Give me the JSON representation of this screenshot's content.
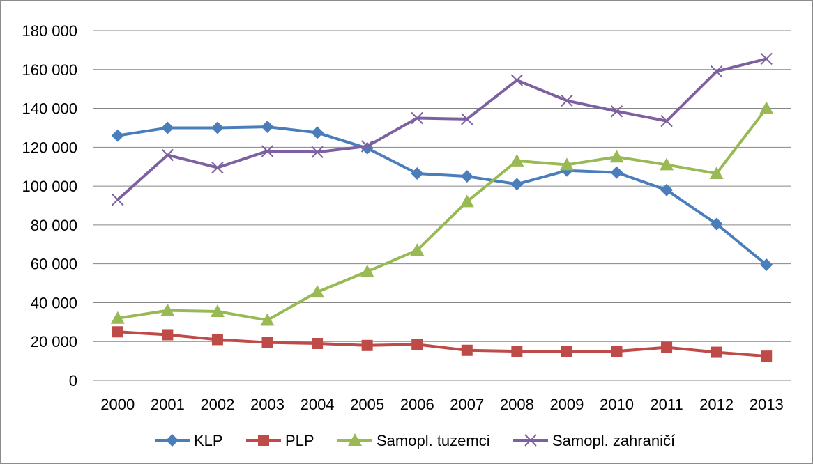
{
  "chart_data": {
    "type": "line",
    "title": "",
    "xlabel": "",
    "ylabel": "",
    "categories": [
      "2000",
      "2001",
      "2002",
      "2003",
      "2004",
      "2005",
      "2006",
      "2007",
      "2008",
      "2009",
      "2010",
      "2011",
      "2012",
      "2013"
    ],
    "ylim": [
      0,
      180000
    ],
    "yticks": [
      0,
      20000,
      40000,
      60000,
      80000,
      100000,
      120000,
      140000,
      160000,
      180000
    ],
    "ytick_labels": [
      "0",
      "20 000",
      "40 000",
      "60 000",
      "80 000",
      "100 000",
      "120 000",
      "140 000",
      "160 000",
      "180 000"
    ],
    "grid": "horizontal",
    "legend_position": "bottom",
    "series": [
      {
        "name": "KLP",
        "color": "#4a7ebb",
        "marker": "diamond",
        "values": [
          126000,
          130000,
          130000,
          130500,
          127500,
          119500,
          106500,
          105000,
          101000,
          108000,
          107000,
          98000,
          80500,
          59500
        ]
      },
      {
        "name": "PLP",
        "color": "#be4b48",
        "marker": "square",
        "values": [
          25000,
          23500,
          21000,
          19500,
          19000,
          18000,
          18500,
          15500,
          15000,
          15000,
          15000,
          17000,
          14500,
          12500
        ]
      },
      {
        "name": "Samopl. tuzemci",
        "color": "#98b954",
        "marker": "triangle",
        "values": [
          32000,
          36000,
          35500,
          31000,
          45500,
          56000,
          67000,
          92000,
          113000,
          111000,
          115000,
          111000,
          106500,
          140000
        ]
      },
      {
        "name": "Samopl. zahraničí",
        "color": "#7d60a0",
        "marker": "x",
        "values": [
          93000,
          116000,
          109500,
          118000,
          117500,
          120500,
          135000,
          134500,
          154500,
          144000,
          138500,
          133500,
          159000,
          165500
        ]
      }
    ]
  }
}
